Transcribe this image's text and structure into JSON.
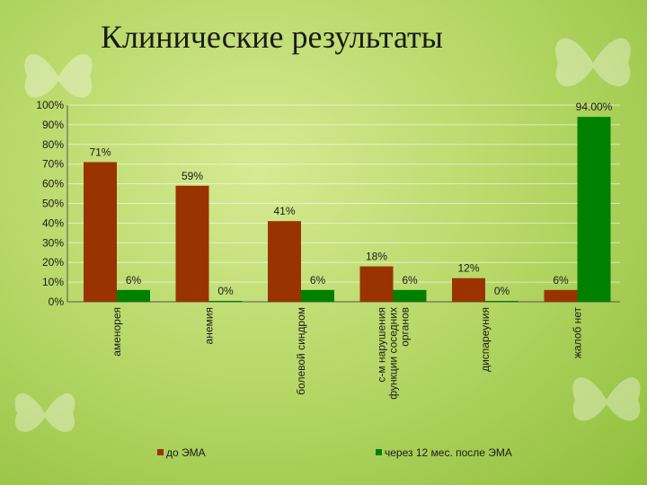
{
  "slide": {
    "title": "Клинические результаты"
  },
  "chart_data": {
    "type": "bar",
    "categories": [
      "аменорея",
      "анемия",
      "болевой синдром",
      "с-м нарушения функции соседних органов",
      "диспареуния",
      "жалоб нет"
    ],
    "series": [
      {
        "name": "до ЭМА",
        "color": "#993300",
        "values": [
          71,
          59,
          41,
          18,
          12,
          6
        ],
        "labels": [
          "71%",
          "59%",
          "41%",
          "18%",
          "12%",
          "6%"
        ]
      },
      {
        "name": "через 12 мес. после ЭМА",
        "color": "#008000",
        "values": [
          6,
          0,
          6,
          6,
          0,
          94
        ],
        "labels": [
          "6%",
          "0%",
          "6%",
          "6%",
          "0%",
          "94.00%"
        ]
      }
    ],
    "ylim": [
      0,
      100
    ],
    "yticks": [
      "0%",
      "10%",
      "20%",
      "30%",
      "40%",
      "50%",
      "60%",
      "70%",
      "80%",
      "90%",
      "100%"
    ],
    "grid": true,
    "legend_position": "bottom"
  }
}
